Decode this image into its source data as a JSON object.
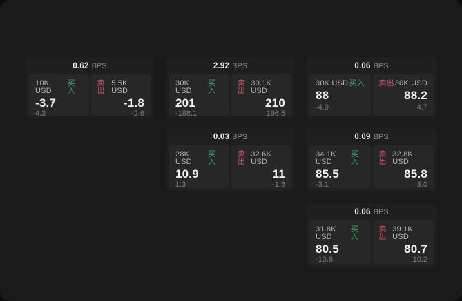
{
  "labels": {
    "bps_unit": "BPS",
    "buy": "买入",
    "sell": "卖出"
  },
  "colors": {
    "outer_bg": "#0c0c0c",
    "window_bg": "#1a1a1a",
    "card_bg": "#1f1f1f",
    "panel_bg": "#272727",
    "text_primary": "#f2f2f2",
    "text_amount": "#b3b3b3",
    "text_muted": "#7b7b7b",
    "buy_green": "#3ba46c",
    "sell_red": "#c95367"
  },
  "cards": [
    {
      "bps": "0.62",
      "buy": {
        "amount": "10K USD",
        "price": "-3.7",
        "delta": "4.3"
      },
      "sell": {
        "amount": "5.5K USD",
        "price": "-1.8",
        "delta": "-2.6"
      }
    },
    {
      "bps": "2.92",
      "buy": {
        "amount": "30K USD",
        "price": "201",
        "delta": "-188.1"
      },
      "sell": {
        "amount": "30.1K USD",
        "price": "210",
        "delta": "196.5"
      }
    },
    {
      "bps": "0.06",
      "buy": {
        "amount": "30K USD",
        "price": "88",
        "delta": "-4.9"
      },
      "sell": {
        "amount": "30K USD",
        "price": "88.2",
        "delta": "4.7"
      }
    },
    {
      "bps": "0.03",
      "buy": {
        "amount": "28K USD",
        "price": "10.9",
        "delta": "1.3"
      },
      "sell": {
        "amount": "32.6K USD",
        "price": "11",
        "delta": "-1.8"
      }
    },
    {
      "bps": "0.09",
      "buy": {
        "amount": "34.1K USD",
        "price": "85.5",
        "delta": "-3.1"
      },
      "sell": {
        "amount": "32.8K USD",
        "price": "85.8",
        "delta": "3.0"
      }
    },
    {
      "bps": "0.06",
      "buy": {
        "amount": "31.8K USD",
        "price": "80.5",
        "delta": "-10.8"
      },
      "sell": {
        "amount": "39.1K USD",
        "price": "80.7",
        "delta": "10.2"
      }
    }
  ]
}
